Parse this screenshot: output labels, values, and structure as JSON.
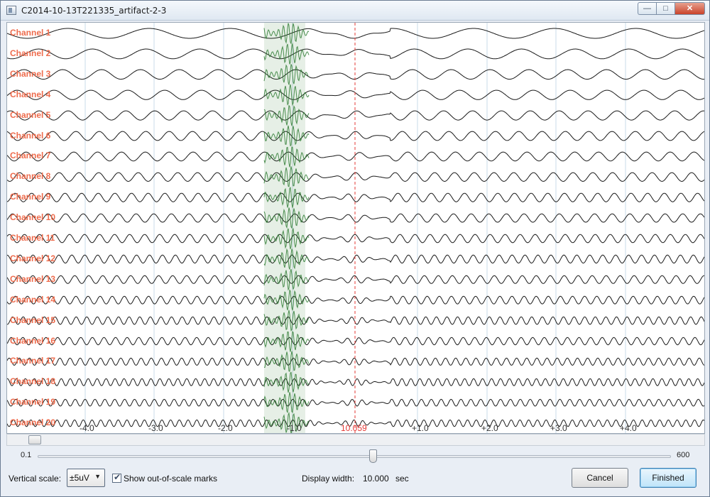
{
  "window": {
    "title": "C2014-10-13T221335_artifact-2-3",
    "minimize_glyph": "—",
    "maximize_glyph": "□",
    "close_glyph": "✕"
  },
  "channels": [
    "Channel 1",
    "Channel 2",
    "Channel 3",
    "Channel 4",
    "Channel 5",
    "Channel 6",
    "Channel 7",
    "Channel 8",
    "Channel 9",
    "Channel 10",
    "Channel 11",
    "Channel 12",
    "Channel 13",
    "Channel 14",
    "Channel 15",
    "Channel 16",
    "Channel 17",
    "Channel 18",
    "Channel 19",
    "Channel 20"
  ],
  "time_axis": {
    "ticks": [
      "-4.0",
      "-3.0",
      "-2.0",
      "-1.0",
      "10.059",
      "+1.0",
      "+2.0",
      "+3.0",
      "+4.0"
    ],
    "cursor_label": "10.059"
  },
  "colors": {
    "label": "#ee6c4d",
    "signal": "#1a1a1a",
    "artifact": "#2e7d32",
    "cursor": "#e53935",
    "grid": "#c9dbe8"
  },
  "slider": {
    "min_label": "0.1",
    "max_label": "600"
  },
  "controls": {
    "vertical_scale_label": "Vertical scale:",
    "vertical_scale_value": "±5uV",
    "show_marks_label": "Show out-of-scale marks",
    "show_marks_checked": true,
    "display_width_label": "Display width:",
    "display_width_value": "10.000",
    "display_width_unit": "sec",
    "cancel_label": "Cancel",
    "finished_label": "Finished"
  }
}
